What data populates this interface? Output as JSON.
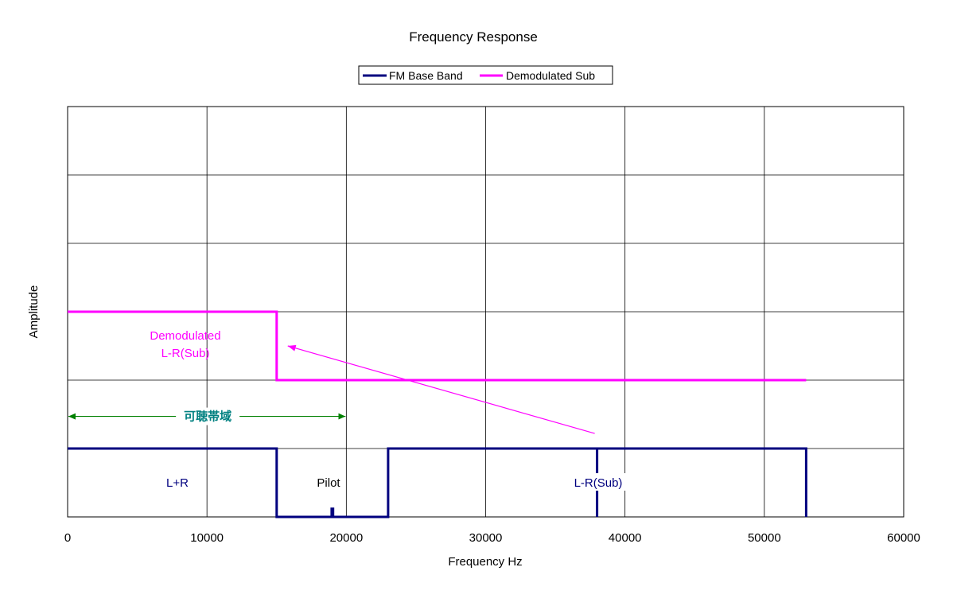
{
  "chart_data": {
    "type": "line",
    "title": "Frequency Response",
    "xlabel": "Frequency Hz",
    "ylabel": "Amplitude",
    "xlim": [
      0,
      60000
    ],
    "ylim": [
      0,
      6
    ],
    "x_ticks": [
      0,
      10000,
      20000,
      30000,
      40000,
      50000,
      60000
    ],
    "grid": true,
    "legend_position": "top-center",
    "series": [
      {
        "name": "FM Base Band",
        "color": "#00007f",
        "points": [
          [
            0,
            1
          ],
          [
            15000,
            1
          ],
          [
            15000,
            0
          ],
          [
            18950,
            0
          ],
          [
            18950,
            0.12
          ],
          [
            19050,
            0.12
          ],
          [
            19050,
            0
          ],
          [
            23000,
            0
          ],
          [
            23000,
            1
          ],
          [
            38000,
            1
          ],
          [
            38000,
            0
          ],
          [
            38000,
            1
          ],
          [
            53000,
            1
          ],
          [
            53000,
            0
          ]
        ]
      },
      {
        "name": "Demodulated Sub",
        "color": "#ff00ff",
        "points": [
          [
            0,
            3
          ],
          [
            15000,
            3
          ],
          [
            15000,
            2
          ],
          [
            53000,
            2
          ]
        ]
      }
    ],
    "annotations": {
      "demod_label": [
        "Demodulated",
        "L-R(Sub)"
      ],
      "audible_band": "可聴帯域",
      "audible_range": [
        0,
        20000
      ],
      "audible_level": 1.47,
      "l_plus_r": "L+R",
      "pilot": "Pilot",
      "l_minus_r": "L-R(Sub)",
      "arrow_from": [
        38000,
        1.22
      ],
      "arrow_to": [
        15800,
        2.5
      ]
    },
    "colors": {
      "annotation_green": "#008000",
      "annotation_teal": "#008080"
    }
  }
}
